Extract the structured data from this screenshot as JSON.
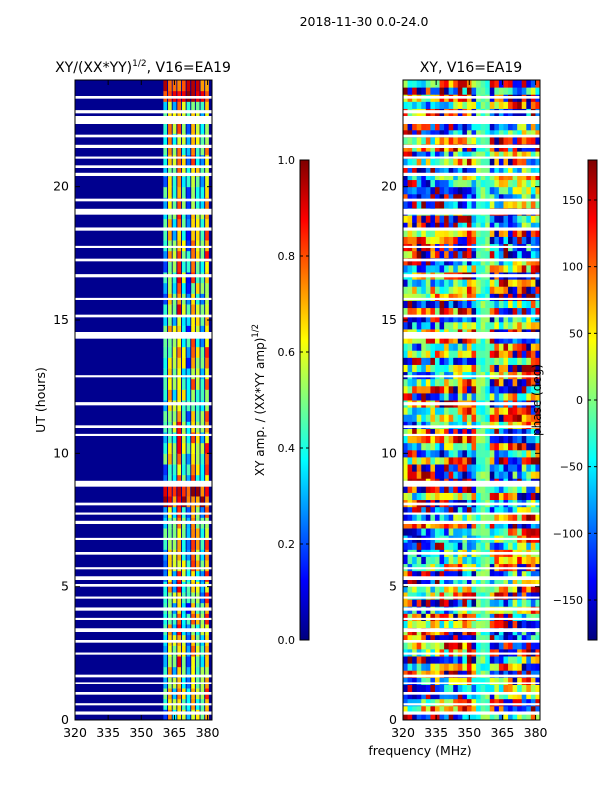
{
  "suptitle": "2018-11-30 0.0-24.0",
  "colors": {
    "background": "#ffffff",
    "plot_bg": "#00008f",
    "jet_stops": [
      "#00007f",
      "#0000ff",
      "#007fff",
      "#00ffff",
      "#7fff7f",
      "#ffff00",
      "#ff7f00",
      "#ff0000",
      "#7f0000"
    ],
    "axis": "#000000"
  },
  "chart_data": [
    {
      "type": "heatmap",
      "id": "amplitude",
      "title_main": "XY/(XX*YY)",
      "title_sup": "1/2",
      "title_rest": ", V16=EA19",
      "ylabel": "UT (hours)",
      "xlim": [
        320,
        382
      ],
      "ylim": [
        0,
        24
      ],
      "xticks": [
        320,
        335,
        350,
        365,
        380
      ],
      "yticks": [
        0,
        5,
        10,
        15,
        20
      ],
      "signal_band_mhz": [
        360,
        381
      ],
      "colorbar": {
        "label_main": "XY amp. / (XX*YY amp)",
        "label_sup": "1/2",
        "range": [
          0.0,
          1.0
        ],
        "ticks": [
          "0.0",
          "0.2",
          "0.4",
          "0.6",
          "0.8",
          "1.0"
        ],
        "tick_values": [
          0.0,
          0.2,
          0.4,
          0.6,
          0.8,
          1.0
        ]
      }
    },
    {
      "type": "heatmap",
      "id": "phase",
      "title": "XY, V16=EA19",
      "ylabel": "phase (deg)",
      "xlabel": "frequency (MHz)",
      "xlim": [
        320,
        382
      ],
      "ylim": [
        0,
        24
      ],
      "xticks": [
        320,
        335,
        350,
        365,
        380
      ],
      "yticks": [
        0,
        5,
        10,
        15,
        20
      ],
      "colorbar": {
        "range": [
          -180,
          180
        ],
        "ticks": [
          "150",
          "100",
          "50",
          "0",
          "−50",
          "−100",
          "−150"
        ],
        "tick_values": [
          150,
          100,
          50,
          0,
          -50,
          -100,
          -150
        ]
      }
    }
  ],
  "gaps_hours": [
    0.2,
    0.55,
    0.95,
    1.35,
    1.6,
    2.45,
    2.9,
    3.3,
    3.75,
    4.1,
    4.55,
    5.0,
    5.25,
    5.65,
    6.2,
    6.75,
    7.35,
    7.7,
    8.05,
    8.75,
    10.65,
    10.95,
    11.8,
    12.85,
    14.3,
    15.1,
    15.75,
    16.6,
    17.2,
    17.7,
    18.35,
    18.95,
    19.45,
    20.4,
    20.7,
    21.05,
    21.45,
    21.85,
    22.35,
    22.75,
    23.3
  ],
  "gap_heights_hours": [
    0.12,
    0.08,
    0.1,
    0.06,
    0.1,
    0.08,
    0.1,
    0.14,
    0.08,
    0.12,
    0.08,
    0.1,
    0.14,
    0.08,
    0.1,
    0.08,
    0.12,
    0.08,
    0.1,
    0.22,
    0.08,
    0.1,
    0.12,
    0.08,
    0.25,
    0.1,
    0.08,
    0.12,
    0.1,
    0.08,
    0.12,
    0.22,
    0.1,
    0.12,
    0.1,
    0.08,
    0.12,
    0.1,
    0.3,
    0.12,
    0.1
  ]
}
